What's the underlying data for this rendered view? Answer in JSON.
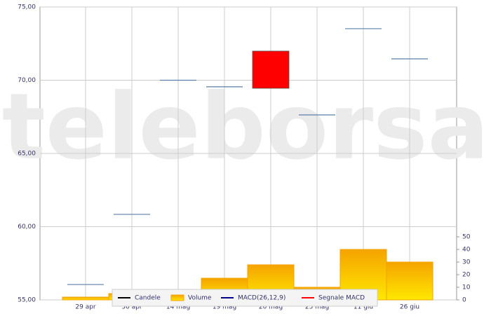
{
  "chart_data": {
    "type": "candlestick",
    "watermark": "teleborsa",
    "categories": [
      "29 apr",
      "30 apr",
      "14 mag",
      "19 mag",
      "20 mag",
      "25 mag",
      "11 giu",
      "26 giu"
    ],
    "candles": {
      "open": [
        56.05,
        60.84,
        70.0,
        69.55,
        71.99,
        67.63,
        73.52,
        71.46
      ],
      "close": [
        56.05,
        60.84,
        70.0,
        69.55,
        69.45,
        67.63,
        73.52,
        71.46
      ],
      "flat_color": "#5a7fa8",
      "down_color": "#ff0000",
      "up_color": "#2e8b57"
    },
    "volume": {
      "values": [
        2.2,
        5,
        0,
        17.2,
        27.8,
        10,
        40,
        30
      ],
      "color": "#f5a300",
      "axis": "y2"
    },
    "ylim": [
      55,
      75
    ],
    "yticks": [
      {
        "value": 55,
        "label": "55,00"
      },
      {
        "value": 60,
        "label": "60,00"
      },
      {
        "value": 65,
        "label": "65,00"
      },
      {
        "value": 70,
        "label": "70,00"
      },
      {
        "value": 75,
        "label": "75,00"
      }
    ],
    "y2lim": [
      0,
      50
    ],
    "y2ticks": [
      0,
      10,
      20,
      30,
      40,
      50
    ],
    "grid": true,
    "legend": [
      {
        "name": "Candele",
        "color": "#000000",
        "kind": "line"
      },
      {
        "name": "Volume",
        "color": "#f5a300",
        "kind": "box"
      },
      {
        "name": "MACD(26,12,9)",
        "color": "#00008b",
        "kind": "line"
      },
      {
        "name": "Segnale MACD",
        "color": "#ff0000",
        "kind": "line"
      }
    ]
  }
}
